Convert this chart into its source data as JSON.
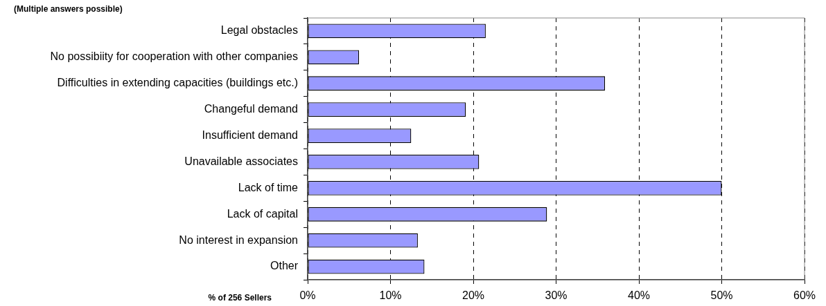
{
  "chart_data": {
    "type": "bar",
    "orientation": "horizontal",
    "title": "(Multiple answers possible)",
    "xlabel": "% of 256 Sellers",
    "categories": [
      "Legal obstacles",
      "No possibiity for cooperation with other companies",
      "Difficulties in extending capacities (buildings etc.)",
      "Changeful demand",
      "Insufficient demand",
      "Unavailable associates",
      "Lack of time",
      "Lack of capital",
      "No interest in expansion",
      "Other"
    ],
    "values": [
      21.5,
      6.2,
      35.9,
      19.1,
      12.5,
      20.7,
      50,
      28.9,
      13.3,
      14.1
    ],
    "color": "#9999ff",
    "xlim": [
      0,
      60
    ],
    "xticks": [
      {
        "value": 0,
        "label": "0%"
      },
      {
        "value": 10,
        "label": "10%"
      },
      {
        "value": 20,
        "label": "20%"
      },
      {
        "value": 30,
        "label": "30%"
      },
      {
        "value": 40,
        "label": "40%"
      },
      {
        "value": 50,
        "label": "50%"
      },
      {
        "value": 60,
        "label": "60%"
      }
    ],
    "grid": "x",
    "legend": false
  }
}
